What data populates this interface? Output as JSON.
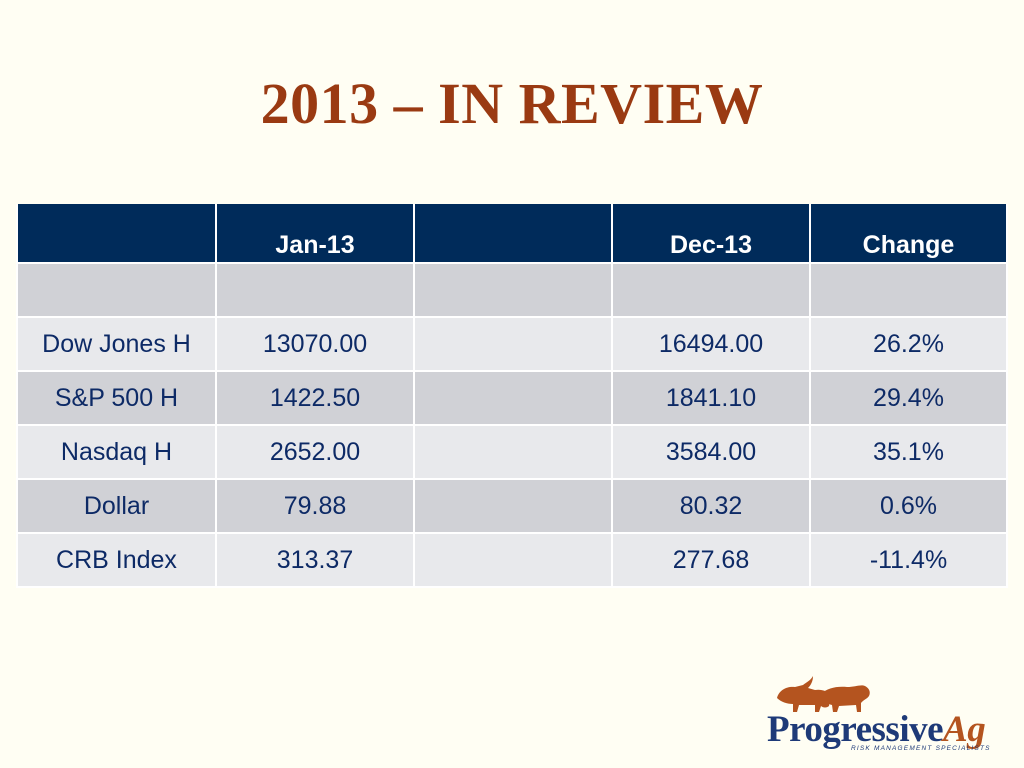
{
  "slide": {
    "title": "2013 – IN REVIEW"
  },
  "table": {
    "headers": [
      "",
      "Jan-13",
      "",
      "Dec-13",
      "Change"
    ],
    "rows": [
      {
        "label": "Dow Jones H",
        "jan": "13070.00",
        "blank": "",
        "dec": "16494.00",
        "change": "26.2%"
      },
      {
        "label": "S&P 500 H",
        "jan": "1422.50",
        "blank": "",
        "dec": "1841.10",
        "change": "29.4%"
      },
      {
        "label": "Nasdaq H",
        "jan": "2652.00",
        "blank": "",
        "dec": "3584.00",
        "change": "35.1%"
      },
      {
        "label": "Dollar",
        "jan": "79.88",
        "blank": "",
        "dec": "80.32",
        "change": "0.6%"
      },
      {
        "label": "CRB Index",
        "jan": "313.37",
        "blank": "",
        "dec": "277.68",
        "change": "-11.4%"
      }
    ]
  },
  "logo": {
    "word_main": "Progressive",
    "word_accent": "Ag",
    "tagline": "RISK MANAGEMENT SPECIALISTS",
    "icon": "bull-and-bear-icon"
  },
  "colors": {
    "background": "#fffef3",
    "title": "#9a3a12",
    "header_bg": "#002b5a",
    "row_dark": "#d0d1d6",
    "row_light": "#e8e9ec",
    "cell_text": "#0d2a66",
    "logo_blue": "#1e3a78",
    "logo_orange": "#b4541f"
  }
}
